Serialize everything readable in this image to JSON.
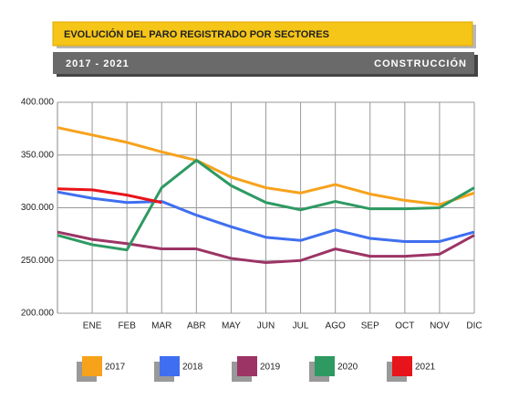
{
  "chart_data": {
    "type": "line",
    "title": "EVOLUCIÓN DEL PARO REGISTRADO POR SECTORES",
    "subtitle": "2017 - 2021",
    "sector": "CONSTRUCCIÓN",
    "categories": [
      null,
      "ENE",
      "FEB",
      "MAR",
      "ABR",
      "MAY",
      "JUN",
      "JUL",
      "AGO",
      "SEP",
      "OCT",
      "NOV",
      "DIC"
    ],
    "series": [
      {
        "name": "2017",
        "color": "#f7a21b",
        "values": [
          376000,
          369000,
          362000,
          353000,
          345000,
          329000,
          319000,
          314000,
          322000,
          313000,
          307000,
          303000,
          314000
        ]
      },
      {
        "name": "2018",
        "color": "#3f6ff0",
        "values": [
          315000,
          309000,
          305000,
          306000,
          293000,
          282000,
          272000,
          269000,
          279000,
          271000,
          268000,
          268000,
          277000
        ]
      },
      {
        "name": "2019",
        "color": "#9c3465",
        "values": [
          277000,
          270000,
          266000,
          261000,
          261000,
          252000,
          248000,
          250000,
          261000,
          254000,
          254000,
          256000,
          274000
        ]
      },
      {
        "name": "2020",
        "color": "#2e9a62",
        "values": [
          274000,
          265000,
          260000,
          319000,
          345000,
          321000,
          305000,
          298000,
          306000,
          299000,
          299000,
          300000,
          319000
        ]
      },
      {
        "name": "2021",
        "color": "#e8141b",
        "values": [
          318000,
          317000,
          312000,
          305000,
          null,
          null,
          null,
          null,
          null,
          null,
          null,
          null,
          null
        ]
      }
    ],
    "ylim": [
      200000,
      400000
    ],
    "yticks": [
      {
        "value": 200000,
        "label": "200.000"
      },
      {
        "value": 250000,
        "label": "250.000"
      },
      {
        "value": 300000,
        "label": "300.000"
      },
      {
        "value": 350000,
        "label": "350.000"
      },
      {
        "value": 400000,
        "label": "400.000"
      }
    ],
    "grid": true
  }
}
